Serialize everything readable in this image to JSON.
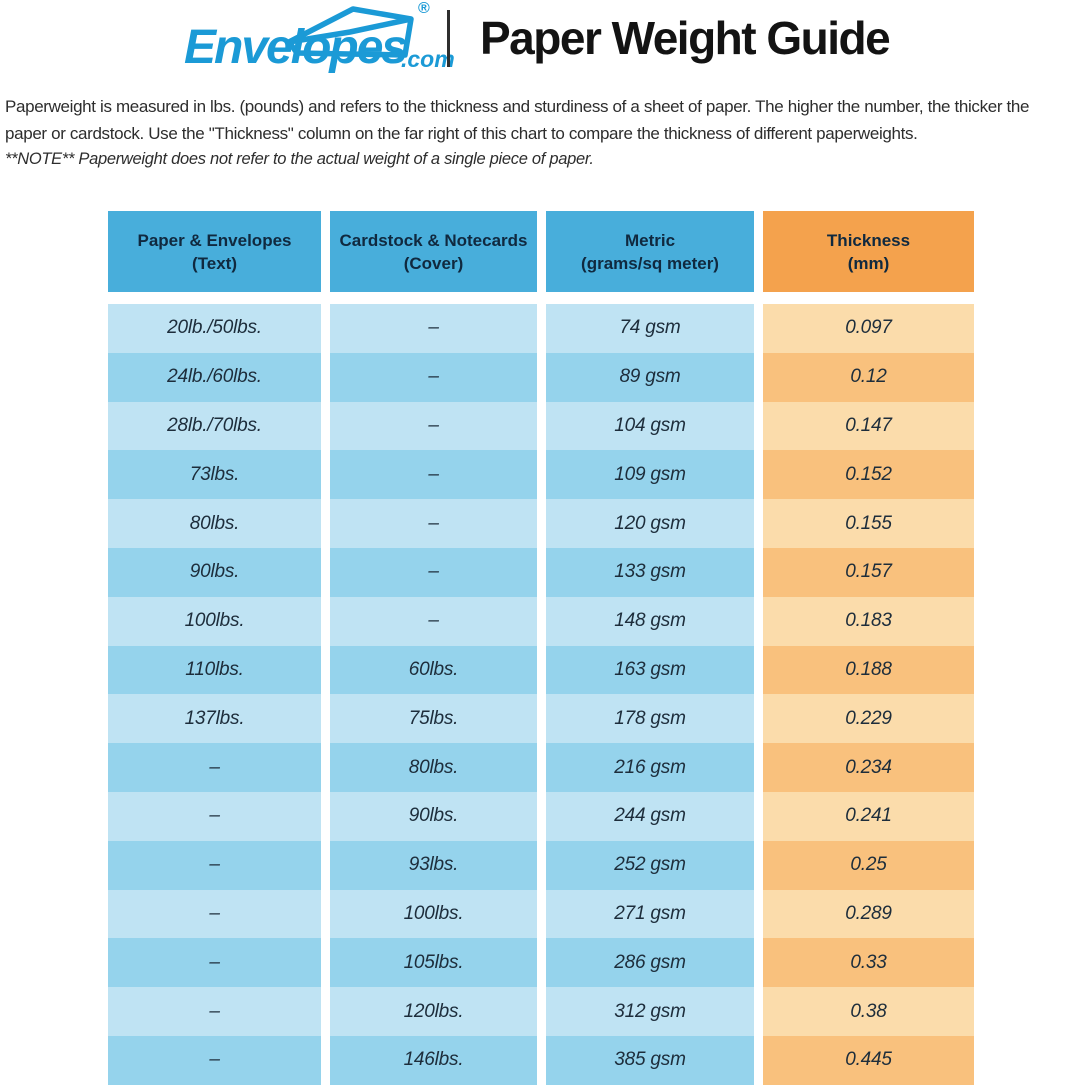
{
  "header": {
    "logo": {
      "brand": "Envelopes",
      "tld": ".com",
      "registered": "®"
    },
    "title": "Paper Weight Guide"
  },
  "intro": {
    "paragraph": "Paperweight is measured in lbs. (pounds) and refers to the thickness and sturdiness of a sheet of paper. The higher the number, the thicker the paper or cardstock. Use the \"Thickness\" column on the far right of this chart to compare the thickness of different paperweights.",
    "note": "**NOTE** Paperweight does not refer to the actual weight of a single piece of paper."
  },
  "colors": {
    "logo_blue": "#1b9ad6",
    "header_blue": "#48aedb",
    "header_orange": "#f4a24d",
    "row_blue_light": "#bfe3f3",
    "row_blue_dark": "#95d3ec",
    "row_orange_light": "#fbdcab",
    "row_orange_dark": "#f9c17d",
    "text_navy": "#1d2d3b"
  },
  "chart_data": {
    "type": "table",
    "title": "Paper Weight Guide",
    "columns": [
      {
        "key": "paper-envelopes-text",
        "line1": "Paper & Envelopes",
        "line2": "(Text)"
      },
      {
        "key": "cardstock-notecards-cover",
        "line1": "Cardstock & Notecards",
        "line2": "(Cover)"
      },
      {
        "key": "metric-gsm",
        "line1": "Metric",
        "line2": "(grams/sq meter)"
      },
      {
        "key": "thickness-mm",
        "line1": "Thickness",
        "line2": "(mm)"
      }
    ],
    "rows": [
      [
        "20lb./50lbs.",
        "–",
        "74 gsm",
        "0.097"
      ],
      [
        "24lb./60lbs.",
        "–",
        "89 gsm",
        "0.12"
      ],
      [
        "28lb./70lbs.",
        "–",
        "104 gsm",
        "0.147"
      ],
      [
        "73lbs.",
        "–",
        "109 gsm",
        "0.152"
      ],
      [
        "80lbs.",
        "–",
        "120 gsm",
        "0.155"
      ],
      [
        "90lbs.",
        "–",
        "133 gsm",
        "0.157"
      ],
      [
        "100lbs.",
        "–",
        "148 gsm",
        "0.183"
      ],
      [
        "110lbs.",
        "60lbs.",
        "163 gsm",
        "0.188"
      ],
      [
        "137lbs.",
        "75lbs.",
        "178 gsm",
        "0.229"
      ],
      [
        "–",
        "80lbs.",
        "216 gsm",
        "0.234"
      ],
      [
        "–",
        "90lbs.",
        "244 gsm",
        "0.241"
      ],
      [
        "–",
        "93lbs.",
        "252 gsm",
        "0.25"
      ],
      [
        "–",
        "100lbs.",
        "271 gsm",
        "0.289"
      ],
      [
        "–",
        "105lbs.",
        "286 gsm",
        "0.33"
      ],
      [
        "–",
        "120lbs.",
        "312 gsm",
        "0.38"
      ],
      [
        "–",
        "146lbs.",
        "385 gsm",
        "0.445"
      ]
    ]
  }
}
